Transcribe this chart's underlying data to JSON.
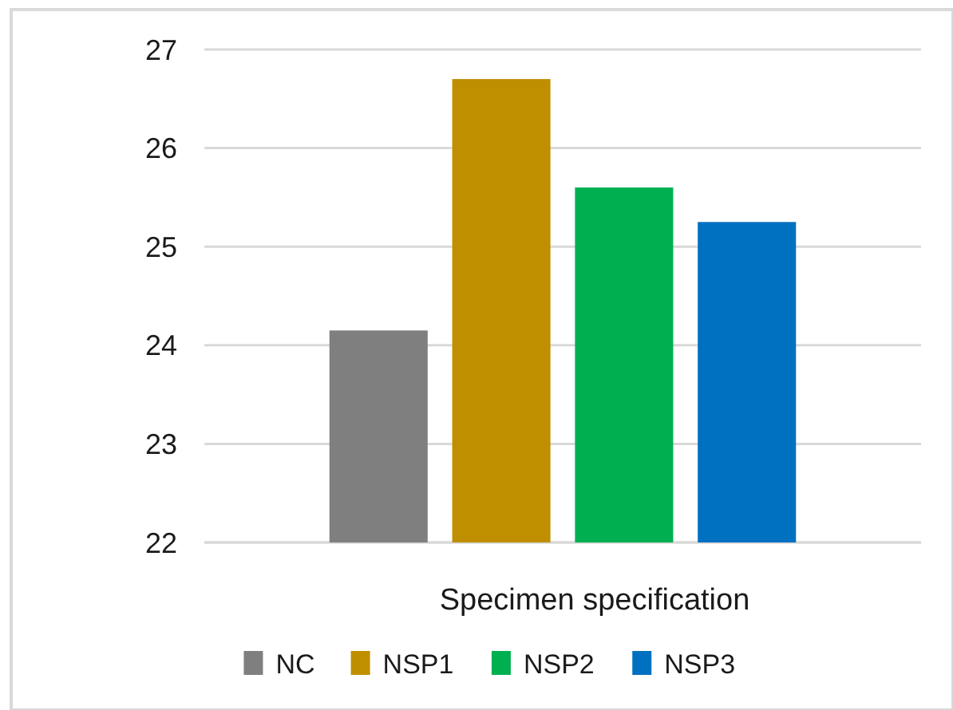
{
  "chart_data": {
    "type": "bar",
    "categories": [
      "Specimen specification"
    ],
    "series": [
      {
        "name": "NC",
        "color": "#7f7f7f",
        "values": [
          24.15
        ]
      },
      {
        "name": "NSP1",
        "color": "#bf8f00",
        "values": [
          26.7
        ]
      },
      {
        "name": "NSP2",
        "color": "#00b050",
        "values": [
          25.6
        ]
      },
      {
        "name": "NSP3",
        "color": "#0070c0",
        "values": [
          25.25
        ]
      }
    ],
    "ylim": [
      22,
      27
    ],
    "yticks": [
      22,
      23,
      24,
      25,
      26,
      27
    ],
    "grid": "y",
    "legend": "bottom"
  }
}
